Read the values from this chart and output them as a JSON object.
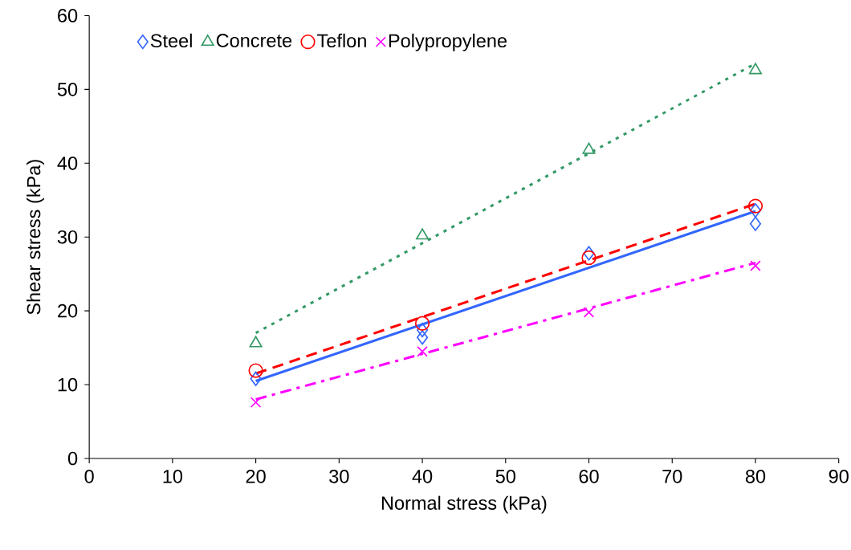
{
  "chart_data": {
    "type": "scatter",
    "xlabel": "Normal stress (kPa)",
    "ylabel": "Shear stress (kPa)",
    "xlim": [
      0,
      90
    ],
    "xticks": [
      0,
      10,
      20,
      30,
      40,
      50,
      60,
      70,
      80,
      90
    ],
    "ylim": [
      0,
      60
    ],
    "yticks": [
      0,
      10,
      20,
      30,
      40,
      50,
      60
    ],
    "grid": false,
    "legend": "top left",
    "series": [
      {
        "name": "Steel",
        "color": "#3366ff",
        "marker": "diamond",
        "x": [
          20,
          40,
          40,
          60,
          80,
          80
        ],
        "values": [
          10.8,
          16.4,
          17.4,
          27.8,
          31.8,
          33.6
        ]
      },
      {
        "name": "Concrete",
        "color": "#339966",
        "marker": "triangle",
        "x": [
          20,
          40,
          60,
          80
        ],
        "values": [
          15.6,
          30.2,
          41.8,
          52.6
        ]
      },
      {
        "name": "Teflon",
        "color": "#ff0000",
        "marker": "circle",
        "x": [
          20,
          40,
          60,
          80
        ],
        "values": [
          11.9,
          18.3,
          27.2,
          34.2
        ]
      },
      {
        "name": "Polypropylene",
        "color": "#ff00ff",
        "marker": "cross",
        "x": [
          20,
          40,
          60,
          80
        ],
        "values": [
          7.6,
          14.5,
          19.8,
          26.1
        ]
      },
      {
        "type": "line",
        "color": "#3366ff",
        "line_style": "solid",
        "x": [
          20,
          80
        ],
        "values": [
          10.5,
          33.5
        ]
      },
      {
        "type": "line",
        "color": "#339966",
        "line_style": "dotted",
        "x": [
          20,
          80
        ],
        "values": [
          17.0,
          53.5
        ]
      },
      {
        "type": "line",
        "color": "#ff0000",
        "line_style": "dashed",
        "x": [
          20,
          80
        ],
        "values": [
          11.5,
          34.5
        ]
      },
      {
        "type": "line",
        "color": "#ff00ff",
        "line_style": "dashdot",
        "x": [
          20,
          80
        ],
        "values": [
          8.0,
          26.5
        ]
      }
    ]
  }
}
